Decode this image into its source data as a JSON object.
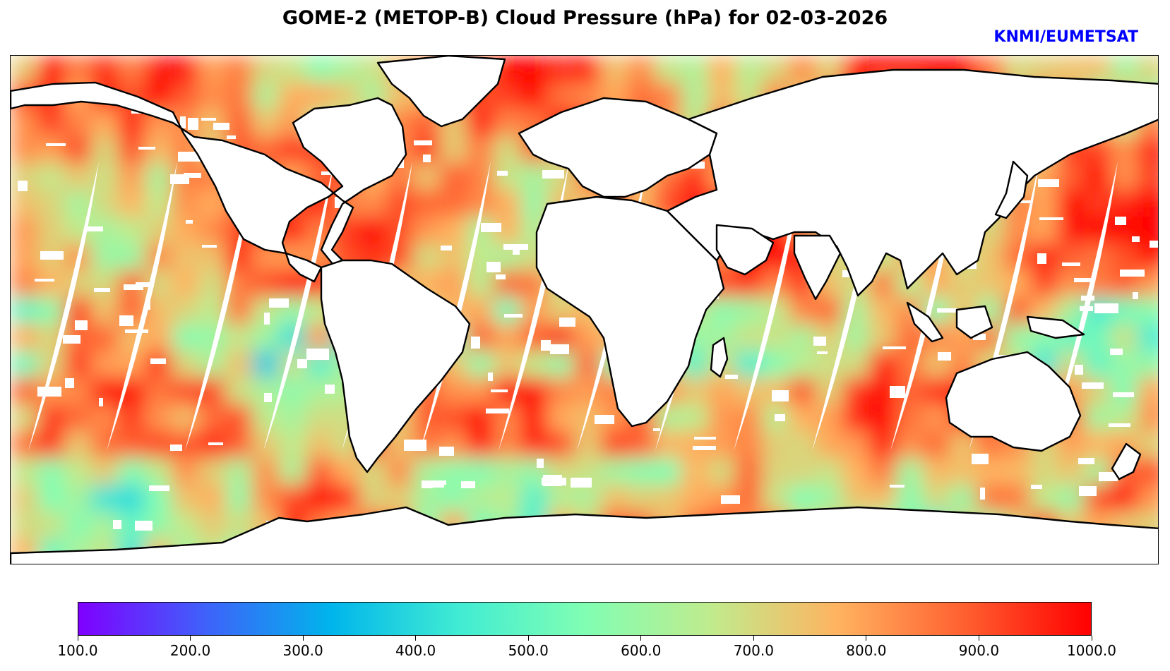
{
  "title": "GOME-2 (METOP-B) Cloud Pressure (hPa) for 02-03-2026",
  "credit": "KNMI/EUMETSAT",
  "map": {
    "variable": "Cloud Pressure",
    "units": "hPa",
    "projection": "equirectangular",
    "coastline_color": "#000000",
    "missing_color": "#ffffff"
  },
  "colorbar": {
    "colormap": "rainbow",
    "min": 100.0,
    "max": 1000.0,
    "colors": [
      "#7f00ff",
      "#3f61fa",
      "#00b5eb",
      "#40ecd3",
      "#80feb3",
      "#c0eb8d",
      "#ffb360",
      "#ff6030",
      "#ff0000"
    ],
    "ticks": [
      "100.0",
      "200.0",
      "300.0",
      "400.0",
      "500.0",
      "600.0",
      "700.0",
      "800.0",
      "900.0",
      "1000.0"
    ]
  }
}
